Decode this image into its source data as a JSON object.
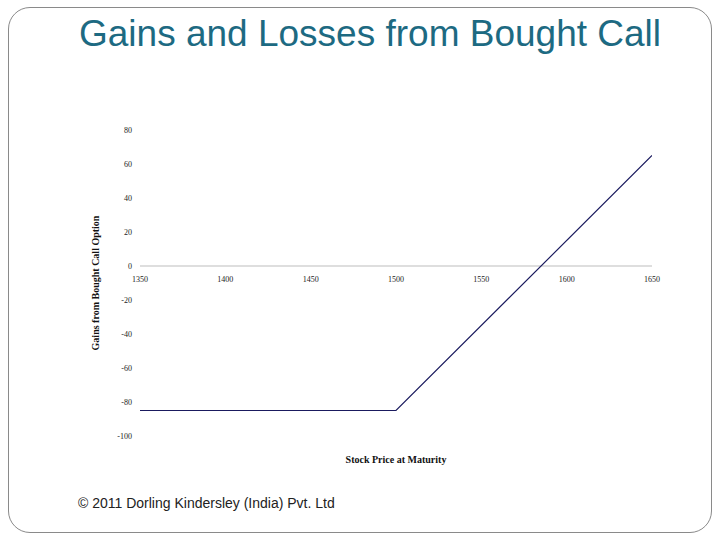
{
  "chart_data": {
    "type": "line",
    "title": "Gains and Losses from Bought Call",
    "x_label": "Stock Price at Maturity",
    "y_label": "Gains from Bought Call Option",
    "x": [
      1350,
      1500,
      1650
    ],
    "values": [
      -85,
      -85,
      65
    ],
    "color": "#1a1a5e",
    "xlim": [
      1350,
      1650
    ],
    "xticks": [
      1350,
      1400,
      1450,
      1500,
      1550,
      1600,
      1650
    ],
    "ylim": [
      -100,
      80
    ],
    "yticks": [
      -100,
      -80,
      -60,
      -40,
      -20,
      0,
      20,
      40,
      60,
      80
    ],
    "grid": false
  },
  "footer": "© 2011 Dorling Kindersley (India) Pvt. Ltd"
}
